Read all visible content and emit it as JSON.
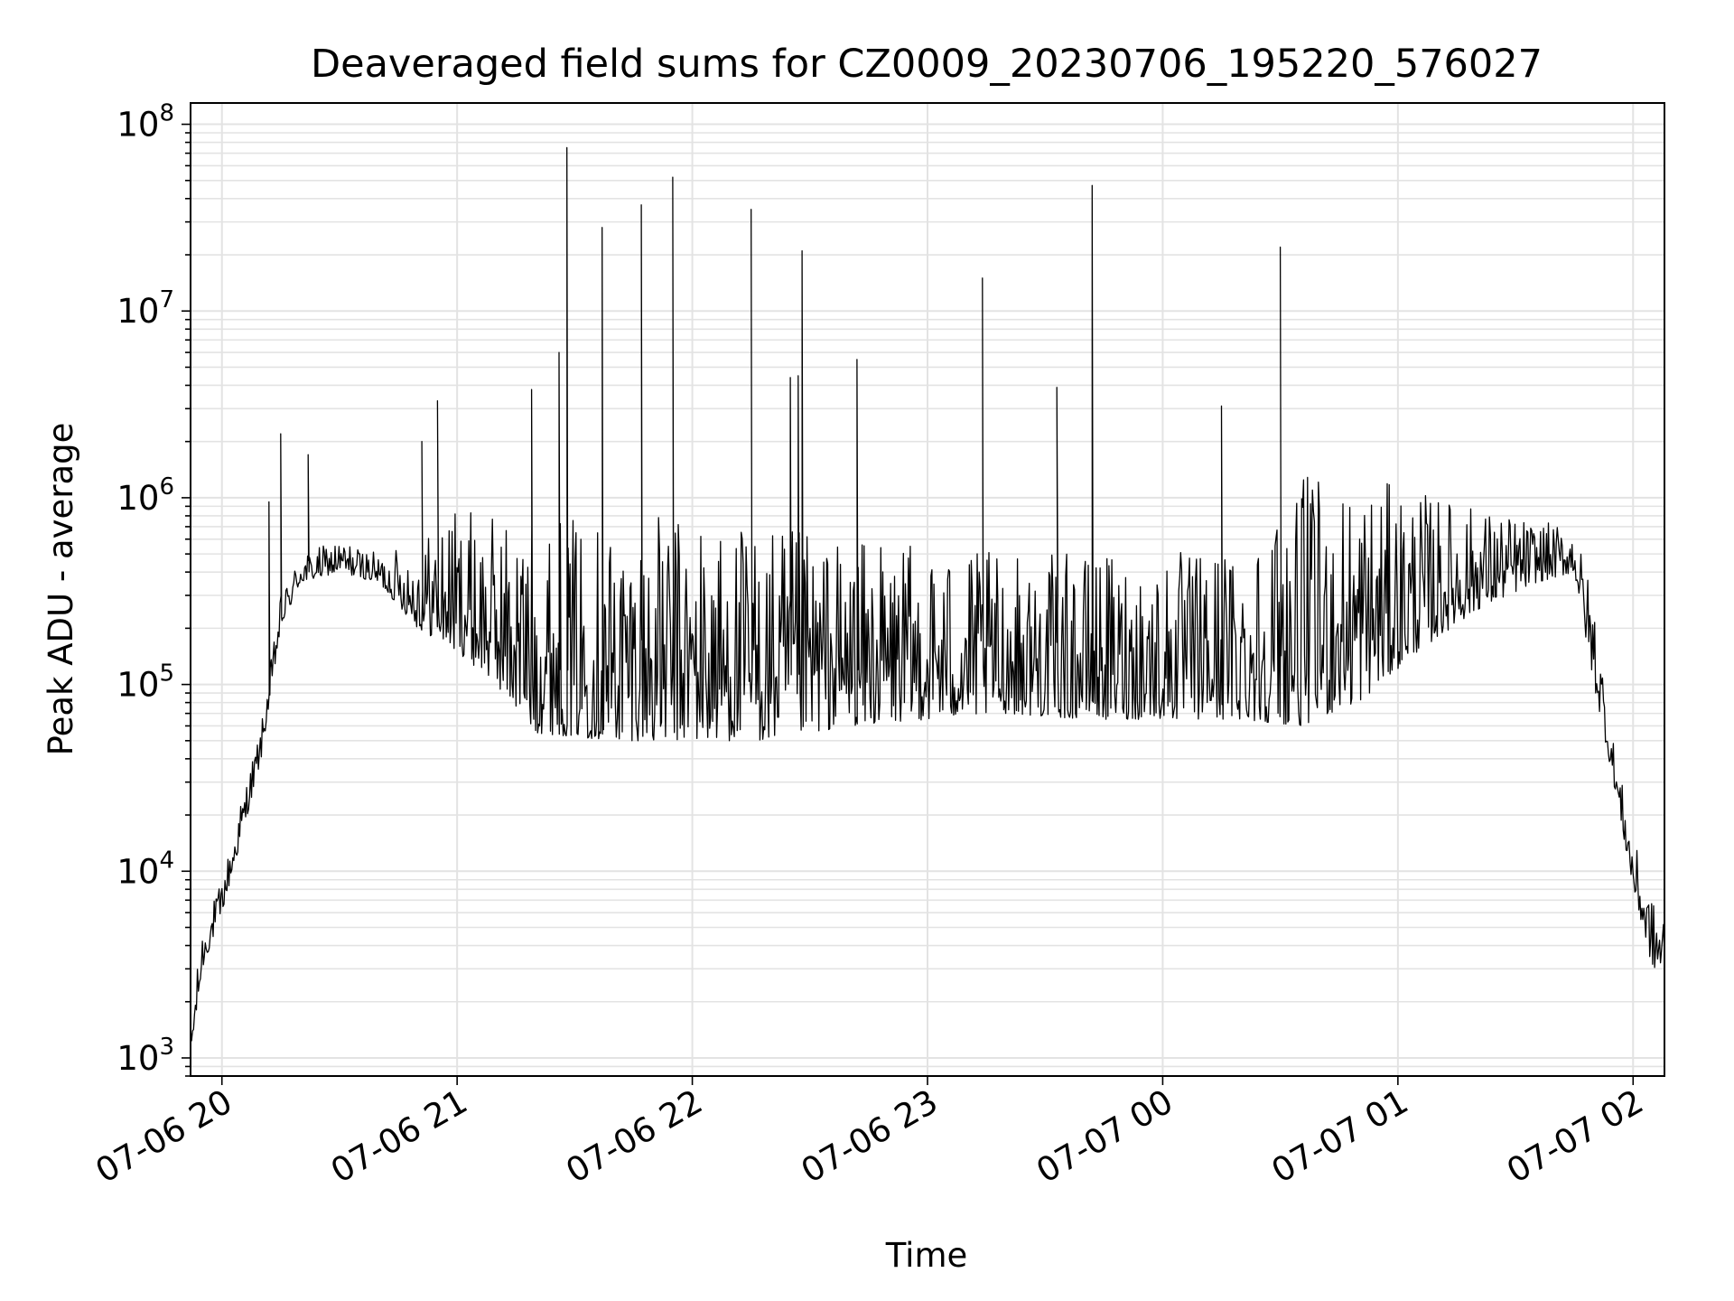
{
  "chart_data": {
    "type": "line",
    "title": "Deaveraged field sums for CZ0009_20230706_195220_576027",
    "xlabel": "Time",
    "ylabel": "Peak ADU - average",
    "yscale": "log",
    "ylim": [
      800,
      130000000
    ],
    "xlim": [
      "2023-07-06 19:52",
      "2023-07-07 02:08"
    ],
    "grid": true,
    "line_color": "#000000",
    "x_ticks": [
      "07-06 20",
      "07-06 21",
      "07-06 22",
      "07-06 23",
      "07-07 00",
      "07-07 01",
      "07-07 02"
    ],
    "y_ticks": [
      {
        "base": "10",
        "exp": "3"
      },
      {
        "base": "10",
        "exp": "4"
      },
      {
        "base": "10",
        "exp": "5"
      },
      {
        "base": "10",
        "exp": "6"
      },
      {
        "base": "10",
        "exp": "7"
      },
      {
        "base": "10",
        "exp": "8"
      }
    ],
    "envelope": [
      {
        "t": "2023-07-06 19:52",
        "low": 1000,
        "high": 1500
      },
      {
        "t": "2023-07-06 19:55",
        "low": 3000,
        "high": 5000
      },
      {
        "t": "2023-07-06 20:00",
        "low": 6000,
        "high": 9000
      },
      {
        "t": "2023-07-06 20:05",
        "low": 15000,
        "high": 25000
      },
      {
        "t": "2023-07-06 20:10",
        "low": 40000,
        "high": 60000
      },
      {
        "t": "2023-07-06 20:15",
        "low": 200000,
        "high": 300000
      },
      {
        "t": "2023-07-06 20:20",
        "low": 350000,
        "high": 500000
      },
      {
        "t": "2023-07-06 20:30",
        "low": 400000,
        "high": 600000
      },
      {
        "t": "2023-07-06 20:40",
        "low": 350000,
        "high": 500000
      },
      {
        "t": "2023-07-06 20:50",
        "low": 200000,
        "high": 600000
      },
      {
        "t": "2023-07-06 21:00",
        "low": 150000,
        "high": 900000
      },
      {
        "t": "2023-07-06 21:10",
        "low": 100000,
        "high": 800000
      },
      {
        "t": "2023-07-06 21:20",
        "low": 55000,
        "high": 800000
      },
      {
        "t": "2023-07-06 21:40",
        "low": 50000,
        "high": 800000
      },
      {
        "t": "2023-07-06 22:00",
        "low": 50000,
        "high": 800000
      },
      {
        "t": "2023-07-06 22:20",
        "low": 50000,
        "high": 700000
      },
      {
        "t": "2023-07-06 22:40",
        "low": 60000,
        "high": 600000
      },
      {
        "t": "2023-07-06 23:00",
        "low": 65000,
        "high": 550000
      },
      {
        "t": "2023-07-06 23:20",
        "low": 70000,
        "high": 500000
      },
      {
        "t": "2023-07-06 23:40",
        "low": 65000,
        "high": 500000
      },
      {
        "t": "2023-07-07 00:00",
        "low": 65000,
        "high": 500000
      },
      {
        "t": "2023-07-07 00:20",
        "low": 65000,
        "high": 600000
      },
      {
        "t": "2023-07-07 00:35",
        "low": 60000,
        "high": 1300000
      },
      {
        "t": "2023-07-07 00:50",
        "low": 80000,
        "high": 1300000
      },
      {
        "t": "2023-07-07 01:05",
        "low": 150000,
        "high": 1100000
      },
      {
        "t": "2023-07-07 01:20",
        "low": 250000,
        "high": 900000
      },
      {
        "t": "2023-07-07 01:35",
        "low": 350000,
        "high": 750000
      },
      {
        "t": "2023-07-07 01:45",
        "low": 400000,
        "high": 700000
      },
      {
        "t": "2023-07-07 01:50",
        "low": 100000,
        "high": 300000
      },
      {
        "t": "2023-07-07 01:55",
        "low": 30000,
        "high": 50000
      },
      {
        "t": "2023-07-07 02:00",
        "low": 8000,
        "high": 15000
      },
      {
        "t": "2023-07-07 02:05",
        "low": 3000,
        "high": 7000
      },
      {
        "t": "2023-07-07 02:08",
        "low": 3000,
        "high": 6000
      }
    ],
    "spikes": [
      {
        "t": "2023-07-06 20:12",
        "y": 950000
      },
      {
        "t": "2023-07-06 20:15",
        "y": 2200000
      },
      {
        "t": "2023-07-06 20:22",
        "y": 1700000
      },
      {
        "t": "2023-07-06 20:51",
        "y": 2000000
      },
      {
        "t": "2023-07-06 20:55",
        "y": 3300000
      },
      {
        "t": "2023-07-06 21:19",
        "y": 3800000
      },
      {
        "t": "2023-07-06 21:26",
        "y": 6000000
      },
      {
        "t": "2023-07-06 21:28",
        "y": 75000000
      },
      {
        "t": "2023-07-06 21:37",
        "y": 28000000
      },
      {
        "t": "2023-07-06 21:47",
        "y": 37000000
      },
      {
        "t": "2023-07-06 21:55",
        "y": 52000000
      },
      {
        "t": "2023-07-06 22:15",
        "y": 35000000
      },
      {
        "t": "2023-07-06 22:25",
        "y": 4400000
      },
      {
        "t": "2023-07-06 22:27",
        "y": 4500000
      },
      {
        "t": "2023-07-06 22:28",
        "y": 21000000
      },
      {
        "t": "2023-07-06 22:42",
        "y": 5500000
      },
      {
        "t": "2023-07-06 23:14",
        "y": 15000000
      },
      {
        "t": "2023-07-06 23:33",
        "y": 3900000
      },
      {
        "t": "2023-07-06 23:42",
        "y": 47000000
      },
      {
        "t": "2023-07-07 00:15",
        "y": 3100000
      },
      {
        "t": "2023-07-07 00:30",
        "y": 22000000
      }
    ]
  }
}
